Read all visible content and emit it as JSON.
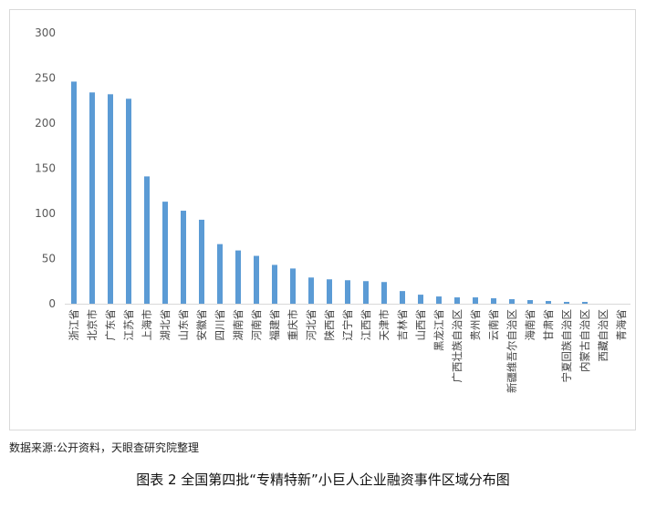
{
  "chart_data": {
    "type": "bar",
    "title": "",
    "xlabel": "",
    "ylabel": "",
    "ylim": [
      0,
      300
    ],
    "yticks": [
      0,
      50,
      100,
      150,
      200,
      250,
      300
    ],
    "grid": false,
    "legend": "none",
    "bar_color": "#5b9bd5",
    "categories": [
      "浙江省",
      "北京市",
      "广东省",
      "江苏省",
      "上海市",
      "湖北省",
      "山东省",
      "安徽省",
      "四川省",
      "湖南省",
      "河南省",
      "福建省",
      "重庆市",
      "河北省",
      "陕西省",
      "辽宁省",
      "江西省",
      "天津市",
      "吉林省",
      "山西省",
      "黑龙江省",
      "广西壮族自治区",
      "贵州省",
      "云南省",
      "新疆维吾尔自治区",
      "海南省",
      "甘肃省",
      "宁夏回族自治区",
      "内蒙古自治区",
      "西藏自治区",
      "青海省"
    ],
    "values": [
      246,
      234,
      232,
      227,
      141,
      113,
      103,
      93,
      66,
      59,
      53,
      43,
      39,
      29,
      27,
      26,
      25,
      24,
      14,
      10,
      8,
      7,
      7,
      6,
      5,
      4,
      3,
      2,
      2,
      0,
      0
    ]
  },
  "source_note": "数据来源:公开资料，天眼查研究院整理",
  "caption": "图表 2 全国第四批“专精特新”小巨人企业融资事件区域分布图"
}
